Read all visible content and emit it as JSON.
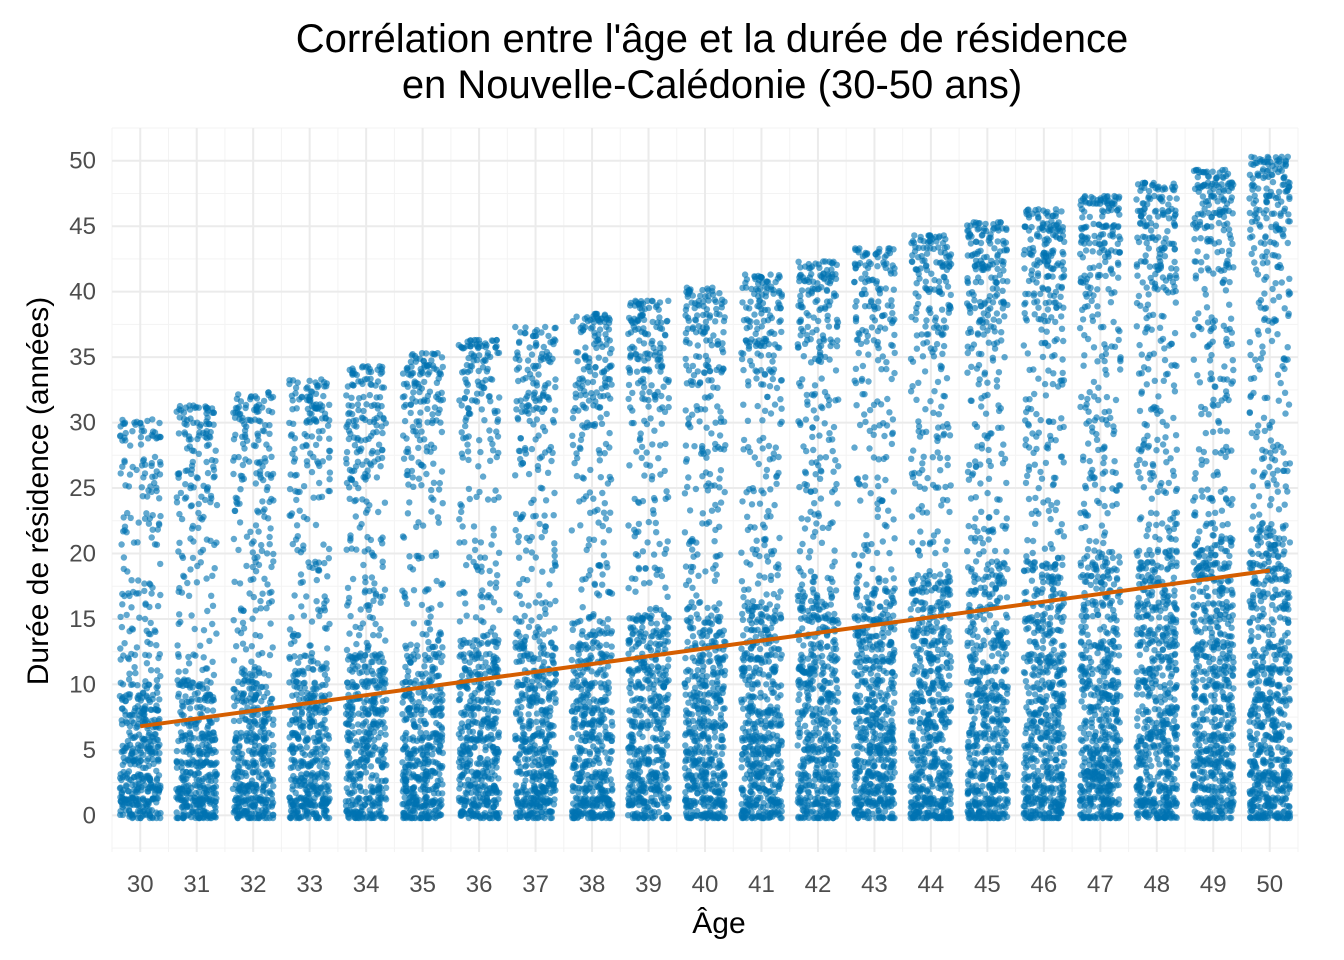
{
  "chart_data": {
    "type": "scatter",
    "title": "Corrélation entre l'âge et la durée de résidence\nen Nouvelle-Calédonie (30-50 ans)",
    "xlabel": "Âge",
    "ylabel": "Durée de résidence (années)",
    "x_ticks": [
      30,
      31,
      32,
      33,
      34,
      35,
      36,
      37,
      38,
      39,
      40,
      41,
      42,
      43,
      44,
      45,
      46,
      47,
      48,
      49,
      50
    ],
    "y_ticks": [
      0,
      5,
      10,
      15,
      20,
      25,
      30,
      35,
      40,
      45,
      50
    ],
    "xlim": [
      29.5,
      50.5
    ],
    "ylim": [
      -2.8,
      52.5
    ],
    "grid": true,
    "point_color": "#0072B2",
    "line_color": "#D55E00",
    "jitter": "points jittered horizontally within each integer age",
    "max_residence_by_age": [
      {
        "age": 30,
        "max": 30
      },
      {
        "age": 31,
        "max": 31
      },
      {
        "age": 32,
        "max": 32
      },
      {
        "age": 33,
        "max": 33
      },
      {
        "age": 34,
        "max": 34
      },
      {
        "age": 35,
        "max": 35
      },
      {
        "age": 36,
        "max": 36
      },
      {
        "age": 37,
        "max": 37
      },
      {
        "age": 38,
        "max": 38
      },
      {
        "age": 39,
        "max": 39
      },
      {
        "age": 40,
        "max": 40
      },
      {
        "age": 41,
        "max": 41
      },
      {
        "age": 42,
        "max": 42
      },
      {
        "age": 43,
        "max": 43
      },
      {
        "age": 44,
        "max": 44
      },
      {
        "age": 45,
        "max": 45
      },
      {
        "age": 46,
        "max": 46
      },
      {
        "age": 47,
        "max": 47
      },
      {
        "age": 48,
        "max": 48
      },
      {
        "age": 49,
        "max": 49
      },
      {
        "age": 50,
        "max": 50
      }
    ],
    "series": [
      {
        "type": "regression_line",
        "x": [
          30,
          50
        ],
        "y": [
          6.8,
          18.7
        ]
      }
    ]
  }
}
